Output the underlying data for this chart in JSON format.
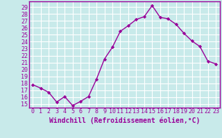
{
  "x": [
    0,
    1,
    2,
    3,
    4,
    5,
    6,
    7,
    8,
    9,
    10,
    11,
    12,
    13,
    14,
    15,
    16,
    17,
    18,
    19,
    20,
    21,
    22,
    23
  ],
  "y": [
    17.8,
    17.3,
    16.7,
    15.3,
    16.1,
    14.8,
    15.4,
    16.1,
    18.6,
    21.5,
    23.2,
    25.5,
    26.3,
    27.2,
    27.6,
    29.2,
    27.5,
    27.3,
    26.5,
    25.2,
    24.1,
    23.3,
    21.2,
    20.8
  ],
  "line_color": "#990099",
  "marker": "D",
  "marker_size": 2.2,
  "bg_color": "#c8eaea",
  "grid_color": "#ffffff",
  "xlabel": "Windchill (Refroidissement éolien,°C)",
  "xlabel_fontsize": 7,
  "ylabel_ticks": [
    15,
    16,
    17,
    18,
    19,
    20,
    21,
    22,
    23,
    24,
    25,
    26,
    27,
    28,
    29
  ],
  "ylim": [
    14.5,
    29.8
  ],
  "xlim": [
    -0.5,
    23.5
  ],
  "tick_fontsize": 6,
  "linewidth": 1.0,
  "spine_color": "#990099"
}
